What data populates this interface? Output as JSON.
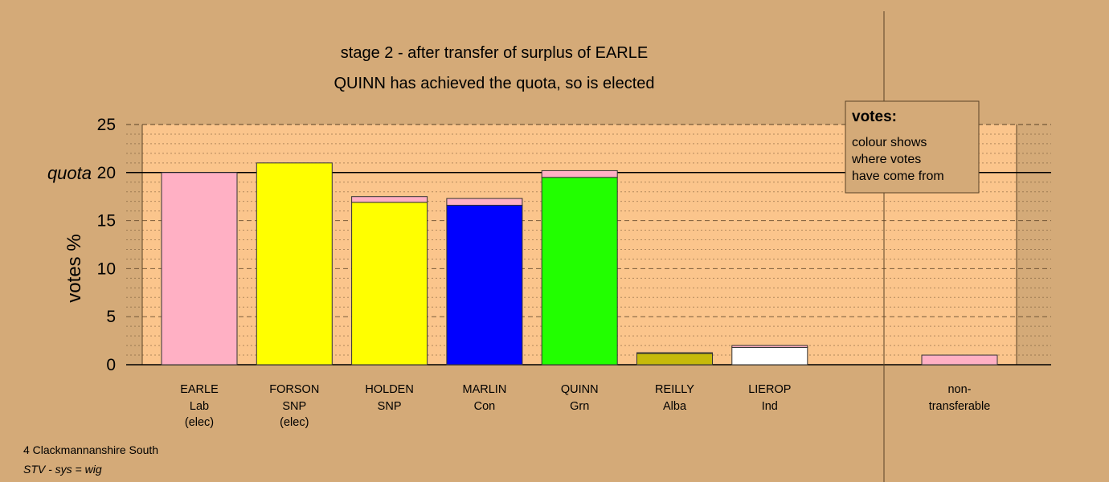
{
  "chart_data": {
    "type": "bar",
    "title": "stage 2 - after transfer of surplus of EARLE",
    "subtitle": "QUINN has achieved the quota, so is elected",
    "ylabel": "votes %",
    "ylim": [
      0,
      25
    ],
    "yticks": [
      0,
      5,
      10,
      15,
      20,
      25
    ],
    "quota": 20,
    "quota_label": "quota",
    "grid": true,
    "colors": {
      "background": "#d4aa78",
      "plot_area": "#fbc58c",
      "Lab": "#ffb0c4",
      "SNP": "#ffff00",
      "Con": "#0000ff",
      "Grn": "#22ff00",
      "Alba": "#c6ba0a",
      "Ind": "#ffffff"
    },
    "categories": [
      {
        "name": "EARLE",
        "party": "Lab",
        "note": "(elec)"
      },
      {
        "name": "FORSON",
        "party": "SNP",
        "note": "(elec)"
      },
      {
        "name": "HOLDEN",
        "party": "SNP",
        "note": ""
      },
      {
        "name": "MARLIN",
        "party": "Con",
        "note": ""
      },
      {
        "name": "QUINN",
        "party": "Grn",
        "note": ""
      },
      {
        "name": "REILLY",
        "party": "Alba",
        "note": ""
      },
      {
        "name": "LIEROP",
        "party": "Ind",
        "note": ""
      }
    ],
    "bars": [
      {
        "segments": [
          {
            "from": "Lab",
            "value": 20.0
          }
        ]
      },
      {
        "segments": [
          {
            "from": "SNP",
            "value": 21.0
          }
        ]
      },
      {
        "segments": [
          {
            "from": "SNP",
            "value": 16.9
          },
          {
            "from": "Lab",
            "value": 0.6
          }
        ]
      },
      {
        "segments": [
          {
            "from": "Con",
            "value": 16.6
          },
          {
            "from": "Lab",
            "value": 0.7
          }
        ]
      },
      {
        "segments": [
          {
            "from": "Grn",
            "value": 19.5
          },
          {
            "from": "Lab",
            "value": 0.7
          }
        ]
      },
      {
        "segments": [
          {
            "from": "Alba",
            "value": 1.2
          },
          {
            "from": "Lab",
            "value": 0.05
          }
        ]
      },
      {
        "segments": [
          {
            "from": "Ind",
            "value": 1.8
          },
          {
            "from": "Lab",
            "value": 0.2
          }
        ]
      }
    ],
    "nontransferable": {
      "label_line1": "non-",
      "label_line2": "transferable",
      "value": 1.0,
      "from": "Lab"
    },
    "legend": {
      "title": "votes:",
      "lines": [
        "colour shows",
        "where votes",
        "have come from"
      ],
      "placement": "top-right"
    }
  },
  "footer": {
    "ward": "4 Clackmannanshire South",
    "system": "STV - sys = wig"
  }
}
